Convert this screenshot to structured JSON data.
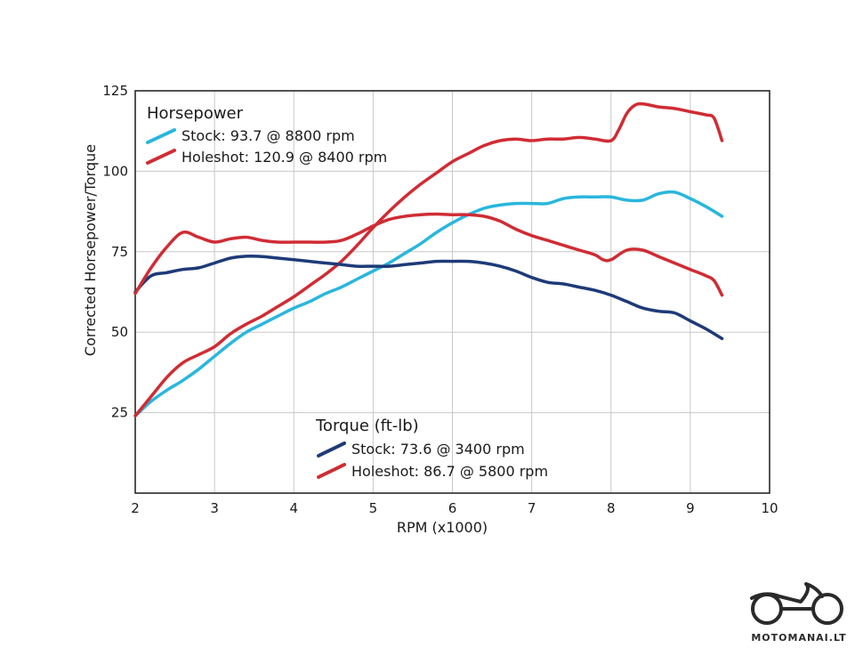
{
  "chart_data": {
    "type": "line",
    "xlabel": "RPM (x1000)",
    "ylabel": "Corrected Horsepower/Torque",
    "xlim": [
      2,
      10
    ],
    "ylim": [
      0,
      125
    ],
    "xticks": [
      2,
      3,
      4,
      5,
      6,
      7,
      8,
      9,
      10
    ],
    "yticks": [
      25,
      50,
      75,
      100,
      125
    ],
    "grid": true,
    "legend": [
      {
        "title": "Horsepower",
        "placement": "top-left",
        "entries": [
          {
            "label": "Stock: 93.7 @ 8800 rpm",
            "series": "hp_stock"
          },
          {
            "label": "Holeshot: 120.9 @ 8400 rpm",
            "series": "hp_holeshot"
          }
        ]
      },
      {
        "title": "Torque (ft-lb)",
        "placement": "bottom-center",
        "entries": [
          {
            "label": "Stock: 73.6 @ 3400 rpm",
            "series": "tq_stock"
          },
          {
            "label": "Holeshot: 86.7 @ 5800 rpm",
            "series": "tq_holeshot"
          }
        ]
      }
    ],
    "series": [
      {
        "id": "hp_stock",
        "color": "#2ab6dd",
        "x": [
          2.0,
          2.2,
          2.4,
          2.6,
          2.8,
          3.0,
          3.2,
          3.4,
          3.6,
          3.8,
          4.0,
          4.2,
          4.4,
          4.6,
          4.8,
          5.0,
          5.2,
          5.4,
          5.6,
          5.8,
          6.0,
          6.2,
          6.4,
          6.6,
          6.8,
          7.0,
          7.2,
          7.4,
          7.6,
          7.8,
          8.0,
          8.2,
          8.4,
          8.6,
          8.8,
          9.0,
          9.2,
          9.4
        ],
        "y": [
          24.0,
          28.5,
          32.0,
          35.0,
          38.5,
          42.5,
          46.5,
          50.0,
          52.5,
          55.0,
          57.5,
          59.5,
          62.0,
          64.0,
          66.5,
          69.0,
          71.5,
          74.5,
          77.5,
          81.0,
          84.0,
          86.5,
          88.5,
          89.5,
          90.0,
          90.0,
          90.0,
          91.5,
          92.0,
          92.0,
          92.0,
          91.0,
          91.0,
          93.0,
          93.5,
          91.5,
          89.0,
          86.0
        ]
      },
      {
        "id": "hp_holeshot",
        "color": "#d02c34",
        "x": [
          2.0,
          2.2,
          2.4,
          2.6,
          2.8,
          3.0,
          3.2,
          3.4,
          3.6,
          3.8,
          4.0,
          4.2,
          4.4,
          4.6,
          4.8,
          5.0,
          5.2,
          5.4,
          5.6,
          5.8,
          6.0,
          6.2,
          6.4,
          6.6,
          6.8,
          7.0,
          7.2,
          7.4,
          7.6,
          7.8,
          8.0,
          8.1,
          8.2,
          8.3,
          8.4,
          8.6,
          8.8,
          9.0,
          9.2,
          9.3,
          9.4
        ],
        "y": [
          24.0,
          30.0,
          36.0,
          40.5,
          43.0,
          45.5,
          49.5,
          52.5,
          55.0,
          58.0,
          61.0,
          64.5,
          68.0,
          72.0,
          77.0,
          82.5,
          87.5,
          92.0,
          96.0,
          99.5,
          103.0,
          105.5,
          108.0,
          109.5,
          110.0,
          109.5,
          110.0,
          110.0,
          110.5,
          110.0,
          109.5,
          113.0,
          118.0,
          120.5,
          120.9,
          120.0,
          119.5,
          118.5,
          117.5,
          116.5,
          109.5
        ]
      },
      {
        "id": "tq_stock",
        "color": "#1e3a78",
        "x": [
          2.0,
          2.2,
          2.4,
          2.6,
          2.8,
          3.0,
          3.2,
          3.4,
          3.6,
          3.8,
          4.0,
          4.2,
          4.4,
          4.6,
          4.8,
          5.0,
          5.2,
          5.4,
          5.6,
          5.8,
          6.0,
          6.2,
          6.4,
          6.6,
          6.8,
          7.0,
          7.2,
          7.4,
          7.6,
          7.8,
          8.0,
          8.2,
          8.4,
          8.6,
          8.8,
          9.0,
          9.2,
          9.4
        ],
        "y": [
          62.5,
          67.5,
          68.5,
          69.5,
          70.0,
          71.5,
          73.0,
          73.6,
          73.5,
          73.0,
          72.5,
          72.0,
          71.5,
          71.0,
          70.5,
          70.5,
          70.5,
          71.0,
          71.5,
          72.0,
          72.0,
          72.0,
          71.5,
          70.5,
          69.0,
          67.0,
          65.5,
          65.0,
          64.0,
          63.0,
          61.5,
          59.5,
          57.5,
          56.5,
          56.0,
          53.5,
          51.0,
          48.0
        ]
      },
      {
        "id": "tq_holeshot",
        "color": "#d02c34",
        "x": [
          2.0,
          2.2,
          2.4,
          2.6,
          2.8,
          3.0,
          3.2,
          3.4,
          3.6,
          3.8,
          4.0,
          4.2,
          4.4,
          4.6,
          4.8,
          5.0,
          5.2,
          5.4,
          5.6,
          5.8,
          6.0,
          6.2,
          6.4,
          6.6,
          6.8,
          7.0,
          7.2,
          7.4,
          7.6,
          7.8,
          7.9,
          8.0,
          8.2,
          8.4,
          8.6,
          8.8,
          9.0,
          9.2,
          9.3,
          9.4
        ],
        "y": [
          62.0,
          70.0,
          76.5,
          81.0,
          79.5,
          78.0,
          79.0,
          79.5,
          78.5,
          78.0,
          78.0,
          78.0,
          78.0,
          78.5,
          80.5,
          83.0,
          85.0,
          86.0,
          86.5,
          86.7,
          86.5,
          86.5,
          86.0,
          84.5,
          82.0,
          80.0,
          78.5,
          77.0,
          75.5,
          74.0,
          72.5,
          72.5,
          75.5,
          75.5,
          73.5,
          71.5,
          69.5,
          67.5,
          66.0,
          61.5
        ]
      }
    ]
  },
  "watermark": {
    "text": "MOTOMANAI.LT"
  }
}
